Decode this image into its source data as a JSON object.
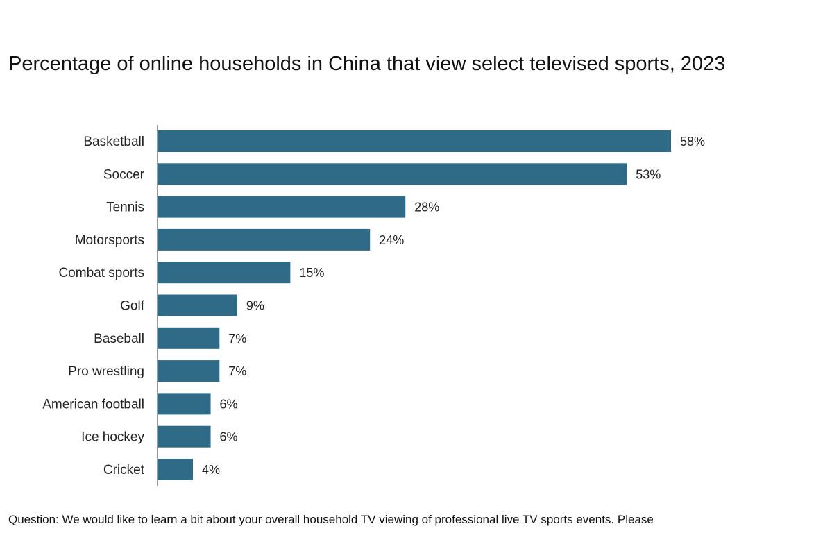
{
  "title": "Percentage of online households in China that view select televised sports, 2023",
  "footnote": {
    "line1": "Question: We would like to learn a bit about your overall household TV viewing of professional live TV sports events. Please"
  },
  "colors": {
    "bar": "#2f6b86",
    "axis": "#9a9a9a"
  },
  "chart_data": {
    "type": "bar",
    "orientation": "horizontal",
    "title": "Percentage of online households in China that view select televised sports, 2023",
    "categories": [
      "Basketball",
      "Soccer",
      "Tennis",
      "Motorsports",
      "Combat sports",
      "Golf",
      "Baseball",
      "Pro wrestling",
      "American football",
      "Ice hockey",
      "Cricket"
    ],
    "values": [
      58,
      53,
      28,
      24,
      15,
      9,
      7,
      7,
      6,
      6,
      4
    ],
    "value_labels": [
      "58%",
      "53%",
      "28%",
      "24%",
      "15%",
      "9%",
      "7%",
      "7%",
      "6%",
      "6%",
      "4%"
    ],
    "unit": "%",
    "xlabel": "",
    "ylabel": "",
    "xlim": [
      0,
      60
    ],
    "grid": false,
    "legend": "none"
  }
}
